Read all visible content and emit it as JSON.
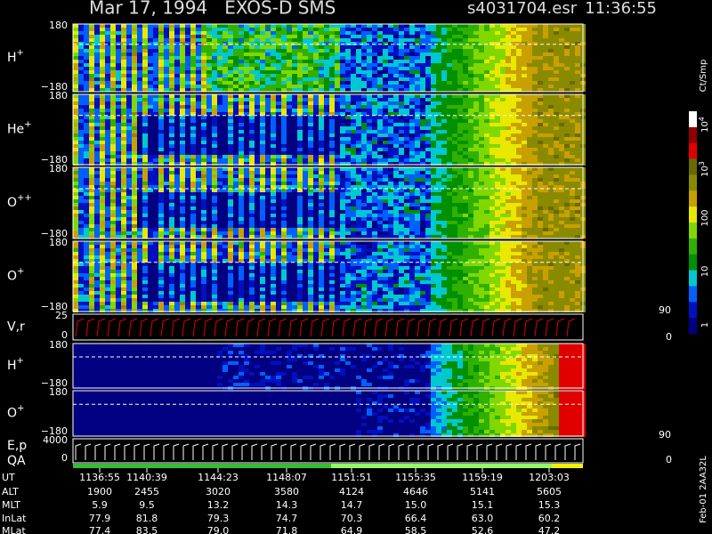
{
  "header": {
    "title": "Mar 17, 1994   EXOS-D SMS",
    "file": "s4031704.esr",
    "time": "11:36:55"
  },
  "panels": [
    {
      "label": "H",
      "sup": "+",
      "top": "180",
      "bottom": "−180"
    },
    {
      "label": "He",
      "sup": "+",
      "top": "180",
      "bottom": "−180"
    },
    {
      "label": "O",
      "sup": "++",
      "top": "180",
      "bottom": "−180"
    },
    {
      "label": "O",
      "sup": "+",
      "top": "180",
      "bottom": "−180"
    },
    {
      "label": "V,r",
      "top": "25",
      "bottom": "0",
      "right_top": "90",
      "right_bottom": "0"
    },
    {
      "label": "H",
      "sup": "+",
      "top": "180",
      "bottom": "−180"
    },
    {
      "label": "O",
      "sup": "+",
      "top": "180",
      "bottom": "−180"
    },
    {
      "label": "E,p",
      "label2": "QA",
      "top": "4000",
      "bottom": "0",
      "right_top": "90",
      "right_bottom": "0"
    }
  ],
  "colorbar": {
    "title": "Ct/Smp",
    "ticks": [
      {
        "base": "10",
        "exp": "4"
      },
      {
        "base": "10",
        "exp": "3"
      },
      {
        "base": "100"
      },
      {
        "base": "10"
      },
      {
        "base": "1"
      }
    ]
  },
  "ephemeris": {
    "rows": [
      [
        "UT",
        "1136:55",
        "1140:39",
        "1144:23",
        "1148:07",
        "1151:51",
        "1155:35",
        "1159:19",
        "1203:03"
      ],
      [
        "ALT",
        "1900",
        "2455",
        "3020",
        "3580",
        "4124",
        "4646",
        "5141",
        "5605"
      ],
      [
        "MLT",
        "5.9",
        "9.5",
        "13.2",
        "14.3",
        "14.7",
        "15.0",
        "15.1",
        "15.3"
      ],
      [
        "InLat",
        "77.9",
        "81.8",
        "79.3",
        "74.7",
        "70.3",
        "66.4",
        "63.0",
        "60.2"
      ],
      [
        "MLat",
        "77.4",
        "83.5",
        "79.0",
        "71.8",
        "64.9",
        "58.5",
        "52.6",
        "47.2"
      ]
    ]
  },
  "footer": "Feb-01 2AA32L"
}
